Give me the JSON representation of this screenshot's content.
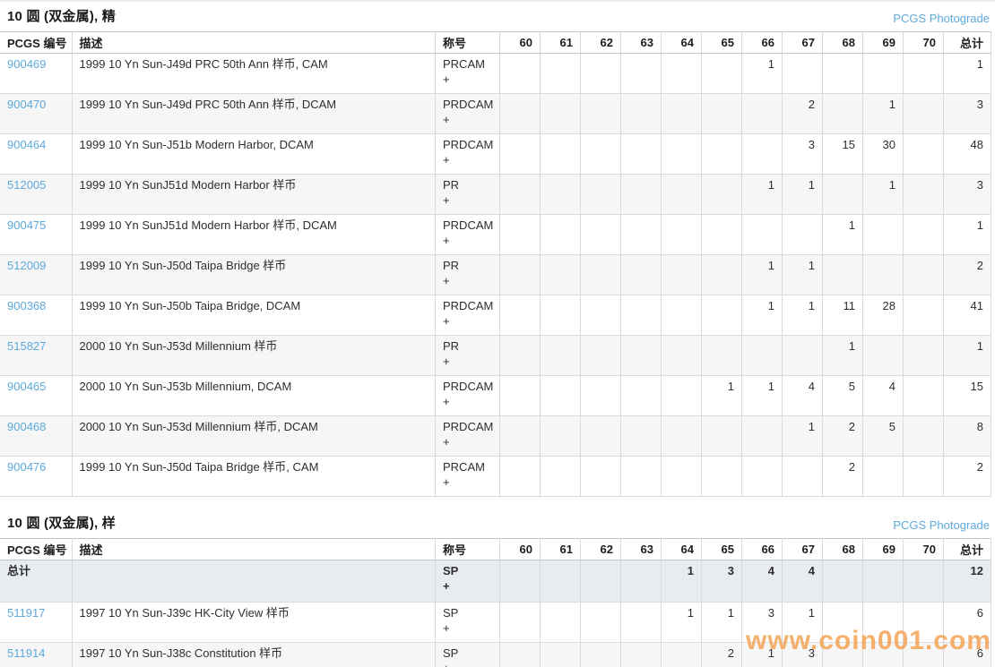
{
  "page": {
    "watermark_text": "www.coin001.com"
  },
  "columns": {
    "id_label": "PCGS 编号",
    "desc_label": "描述",
    "designation_label": "称号",
    "grade_labels": [
      "60",
      "61",
      "62",
      "63",
      "64",
      "65",
      "66",
      "67",
      "68",
      "69",
      "70"
    ],
    "total_label": "总计"
  },
  "colors": {
    "link_blue": "#5da9da",
    "summary_row_bg": "#e8ecf0",
    "alt_row_bg": "#f6f6f6",
    "watermark_orange": "#f49f4d"
  },
  "sections": [
    {
      "title": "10 圆 (双金属), 精",
      "photograde_label": "PCGS Photograde",
      "rows": [
        {
          "id": "900469",
          "desc": "1999 10 Yn Sun-J49d PRC 50th Ann 样币, CAM",
          "designation": "PRCAM",
          "designation_suffix": "+",
          "grades": [
            "",
            "",
            "",
            "",
            "",
            "",
            "1",
            "",
            "",
            "",
            ""
          ],
          "total": "1"
        },
        {
          "id": "900470",
          "desc": "1999 10 Yn Sun-J49d PRC 50th Ann 样币, DCAM",
          "designation": "PRDCAM",
          "designation_suffix": "+",
          "grades": [
            "",
            "",
            "",
            "",
            "",
            "",
            "",
            "2",
            "",
            "1",
            ""
          ],
          "total": "3"
        },
        {
          "id": "900464",
          "desc": "1999 10 Yn Sun-J51b Modern Harbor, DCAM",
          "designation": "PRDCAM",
          "designation_suffix": "+",
          "grades": [
            "",
            "",
            "",
            "",
            "",
            "",
            "",
            "3",
            "15",
            "30",
            ""
          ],
          "total": "48"
        },
        {
          "id": "512005",
          "desc": "1999 10 Yn SunJ51d Modern Harbor 样币",
          "designation": "PR",
          "designation_suffix": "+",
          "grades": [
            "",
            "",
            "",
            "",
            "",
            "",
            "1",
            "1",
            "",
            "1",
            ""
          ],
          "total": "3"
        },
        {
          "id": "900475",
          "desc": "1999 10 Yn SunJ51d Modern Harbor 样币, DCAM",
          "designation": "PRDCAM",
          "designation_suffix": "+",
          "grades": [
            "",
            "",
            "",
            "",
            "",
            "",
            "",
            "",
            "1",
            "",
            ""
          ],
          "total": "1"
        },
        {
          "id": "512009",
          "desc": "1999 10 Yn Sun-J50d Taipa Bridge 样币",
          "designation": "PR",
          "designation_suffix": "+",
          "grades": [
            "",
            "",
            "",
            "",
            "",
            "",
            "1",
            "1",
            "",
            "",
            ""
          ],
          "total": "2"
        },
        {
          "id": "900368",
          "desc": "1999 10 Yn Sun-J50b Taipa Bridge, DCAM",
          "designation": "PRDCAM",
          "designation_suffix": "+",
          "grades": [
            "",
            "",
            "",
            "",
            "",
            "",
            "1",
            "1",
            "11",
            "28",
            ""
          ],
          "total": "41"
        },
        {
          "id": "515827",
          "desc": "2000 10 Yn Sun-J53d Millennium 样币",
          "designation": "PR",
          "designation_suffix": "+",
          "grades": [
            "",
            "",
            "",
            "",
            "",
            "",
            "",
            "",
            "1",
            "",
            ""
          ],
          "total": "1"
        },
        {
          "id": "900465",
          "desc": "2000 10 Yn Sun-J53b Millennium, DCAM",
          "designation": "PRDCAM",
          "designation_suffix": "+",
          "grades": [
            "",
            "",
            "",
            "",
            "",
            "1",
            "1",
            "4",
            "5",
            "4",
            ""
          ],
          "total": "15"
        },
        {
          "id": "900468",
          "desc": "2000 10 Yn Sun-J53d Millennium 样币, DCAM",
          "designation": "PRDCAM",
          "designation_suffix": "+",
          "grades": [
            "",
            "",
            "",
            "",
            "",
            "",
            "",
            "1",
            "2",
            "5",
            ""
          ],
          "total": "8"
        },
        {
          "id": "900476",
          "desc": "1999 10 Yn Sun-J50d Taipa Bridge 样币, CAM",
          "designation": "PRCAM",
          "designation_suffix": "+",
          "grades": [
            "",
            "",
            "",
            "",
            "",
            "",
            "",
            "",
            "2",
            "",
            ""
          ],
          "total": "2"
        }
      ]
    },
    {
      "title": "10 圆 (双金属), 样",
      "photograde_label": "PCGS Photograde",
      "summary": {
        "label": "总计",
        "desc": "",
        "designation": "SP",
        "designation_suffix": "+",
        "grades": [
          "",
          "",
          "",
          "",
          "1",
          "3",
          "4",
          "4",
          "",
          "",
          ""
        ],
        "total": "12"
      },
      "rows": [
        {
          "id": "511917",
          "desc": "1997 10 Yn Sun-J39c HK-City View 样币",
          "designation": "SP",
          "designation_suffix": "+",
          "grades": [
            "",
            "",
            "",
            "",
            "1",
            "1",
            "3",
            "1",
            "",
            "",
            ""
          ],
          "total": "6"
        },
        {
          "id": "511914",
          "desc": "1997 10 Yn Sun-J38c Constitution 样币",
          "designation": "SP",
          "designation_suffix": "+",
          "grades": [
            "",
            "",
            "",
            "",
            "",
            "2",
            "1",
            "3",
            "",
            "",
            ""
          ],
          "total": "6"
        }
      ]
    }
  ]
}
